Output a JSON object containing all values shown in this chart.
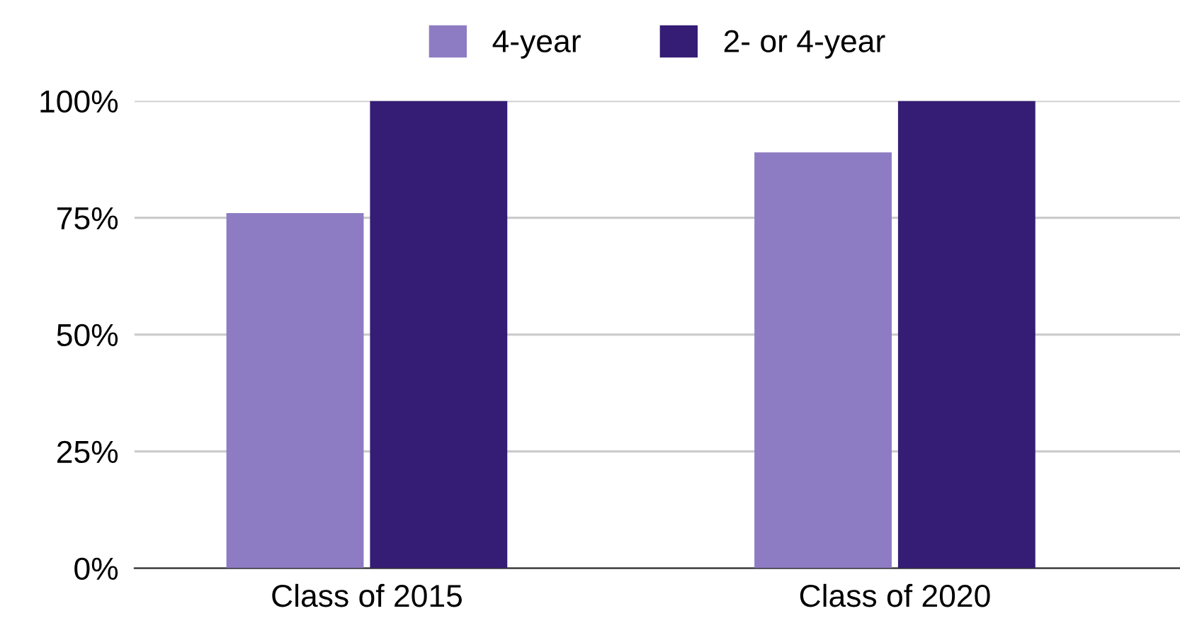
{
  "chart_data": {
    "type": "bar",
    "categories": [
      "Class of 2015",
      "Class of 2020"
    ],
    "series": [
      {
        "name": "4-year",
        "color": "#8d7cc3",
        "values": [
          76,
          89
        ]
      },
      {
        "name": "2- or 4-year",
        "color": "#351c75",
        "values": [
          100,
          100
        ]
      }
    ],
    "ylim": [
      0,
      100
    ],
    "yticks": [
      {
        "value": 0,
        "label": "0%"
      },
      {
        "value": 25,
        "label": "25%"
      },
      {
        "value": 50,
        "label": "50%"
      },
      {
        "value": 75,
        "label": "75%"
      },
      {
        "value": 100,
        "label": "100%"
      }
    ],
    "grid": "y",
    "legend": "top"
  }
}
